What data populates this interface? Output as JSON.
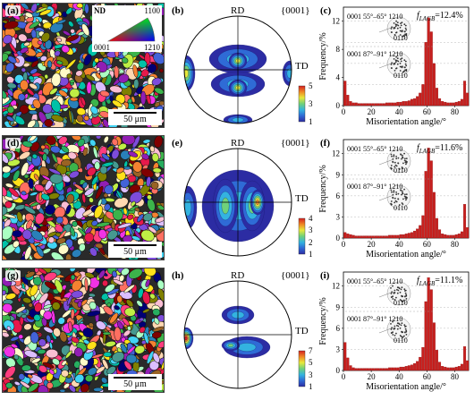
{
  "rows": [
    {
      "ebsd_label": "(a)",
      "pf_label": "(b)",
      "hist_label": "(c)",
      "pf_max": 5,
      "pf_ticks": [
        5,
        3,
        1
      ],
      "flagb_prefix": "f",
      "flagb_sub": "LAGB",
      "flagb_value": "=12.4%",
      "ebsd_seed": 7
    },
    {
      "ebsd_label": "(d)",
      "pf_label": "(e)",
      "hist_label": "(f)",
      "pf_max": 4,
      "pf_ticks": [
        4,
        3,
        2,
        1
      ],
      "flagb_prefix": "f",
      "flagb_sub": "LAGB",
      "flagb_value": "=11.6%",
      "ebsd_seed": 23
    },
    {
      "ebsd_label": "(g)",
      "pf_label": "(h)",
      "hist_label": "(i)",
      "pf_max": 7,
      "pf_ticks": [
        7,
        5,
        3,
        1
      ],
      "flagb_prefix": "f",
      "flagb_sub": "LAGB",
      "flagb_value": "=11.1%",
      "ebsd_seed": 51
    }
  ],
  "scalebar": "50 μm",
  "ipf_key": {
    "nd": "ND",
    "c1100": "1100",
    "c0001": "0001",
    "c1210": "1210"
  },
  "pole_figure": {
    "rd": "RD",
    "td": "TD",
    "plane": "{0001}"
  },
  "histogram_text": {
    "inset1": "0001  55°–65°  1210",
    "inset2": "0001  87°–91°  1210",
    "inset_low": "0110",
    "ylabel": "Frequency/%",
    "xlabel": "Misorientation angle/°"
  },
  "chart_data": [
    {
      "type": "bar",
      "title": "",
      "xlabel": "Misorientation angle/°",
      "ylabel": "Frequency/%",
      "xlim": [
        0,
        90
      ],
      "ylim": [
        0,
        14
      ],
      "xticks": [
        0,
        20,
        40,
        60,
        80
      ],
      "yticks": [
        0,
        4,
        8,
        12
      ],
      "gridlines_y": [
        3,
        6,
        9,
        12
      ],
      "x": [
        2,
        4,
        6,
        8,
        10,
        12,
        14,
        16,
        18,
        20,
        22,
        24,
        26,
        28,
        30,
        32,
        34,
        36,
        38,
        40,
        42,
        44,
        46,
        48,
        50,
        52,
        54,
        56,
        58,
        60,
        62,
        64,
        66,
        68,
        70,
        72,
        74,
        76,
        78,
        80,
        82,
        84,
        86,
        88,
        90
      ],
      "values": [
        3.5,
        1.5,
        0.6,
        0.4,
        0.4,
        0.3,
        0.3,
        0.3,
        0.3,
        0.3,
        0.3,
        0.3,
        0.3,
        0.3,
        0.3,
        0.4,
        0.4,
        0.4,
        0.4,
        0.5,
        0.5,
        0.6,
        0.6,
        0.7,
        0.9,
        1.0,
        1.3,
        1.8,
        3.0,
        9.0,
        12.5,
        10.5,
        6.0,
        2.5,
        1.0,
        0.6,
        0.5,
        0.4,
        0.4,
        0.4,
        0.5,
        0.6,
        0.9,
        3.5,
        1.8
      ]
    },
    {
      "type": "bar",
      "title": "",
      "xlabel": "Misorientation angle/°",
      "ylabel": "Frequency/%",
      "xlim": [
        0,
        90
      ],
      "ylim": [
        0,
        14
      ],
      "xticks": [
        0,
        20,
        40,
        60,
        80
      ],
      "yticks": [
        0,
        3,
        6,
        9,
        12
      ],
      "gridlines_y": [
        3,
        6,
        9,
        12
      ],
      "x": [
        2,
        4,
        6,
        8,
        10,
        12,
        14,
        16,
        18,
        20,
        22,
        24,
        26,
        28,
        30,
        32,
        34,
        36,
        38,
        40,
        42,
        44,
        46,
        48,
        50,
        52,
        54,
        56,
        58,
        60,
        62,
        64,
        66,
        68,
        70,
        72,
        74,
        76,
        78,
        80,
        82,
        84,
        86,
        88,
        90
      ],
      "values": [
        0.8,
        0.6,
        0.5,
        0.4,
        0.3,
        0.3,
        0.3,
        0.3,
        0.3,
        0.3,
        0.3,
        0.3,
        0.3,
        0.3,
        0.3,
        0.3,
        0.4,
        0.4,
        0.4,
        0.4,
        0.5,
        0.5,
        0.6,
        0.7,
        0.8,
        1.0,
        1.3,
        1.8,
        3.2,
        9.5,
        12.8,
        11.0,
        6.5,
        2.8,
        1.2,
        0.6,
        0.5,
        0.4,
        0.4,
        0.4,
        0.5,
        0.6,
        0.9,
        4.8,
        1.5
      ]
    },
    {
      "type": "bar",
      "title": "",
      "xlabel": "Misorientation angle/°",
      "ylabel": "Frequency/%",
      "xlim": [
        0,
        90
      ],
      "ylim": [
        0,
        14
      ],
      "xticks": [
        0,
        20,
        40,
        60,
        80
      ],
      "yticks": [
        0,
        3,
        6,
        9,
        12
      ],
      "gridlines_y": [
        3,
        6,
        9,
        12
      ],
      "x": [
        2,
        4,
        6,
        8,
        10,
        12,
        14,
        16,
        18,
        20,
        22,
        24,
        26,
        28,
        30,
        32,
        34,
        36,
        38,
        40,
        42,
        44,
        46,
        48,
        50,
        52,
        54,
        56,
        58,
        60,
        62,
        64,
        66,
        68,
        70,
        72,
        74,
        76,
        78,
        80,
        82,
        84,
        86,
        88,
        90
      ],
      "values": [
        4.0,
        1.8,
        0.7,
        0.4,
        0.3,
        0.3,
        0.3,
        0.3,
        0.3,
        0.3,
        0.3,
        0.3,
        0.3,
        0.3,
        0.3,
        0.3,
        0.4,
        0.4,
        0.4,
        0.4,
        0.5,
        0.5,
        0.6,
        0.7,
        0.8,
        1.0,
        1.3,
        1.9,
        3.3,
        9.8,
        13.2,
        11.5,
        6.8,
        2.9,
        1.2,
        0.6,
        0.5,
        0.4,
        0.4,
        0.4,
        0.5,
        0.6,
        0.9,
        3.4,
        1.4
      ]
    }
  ]
}
